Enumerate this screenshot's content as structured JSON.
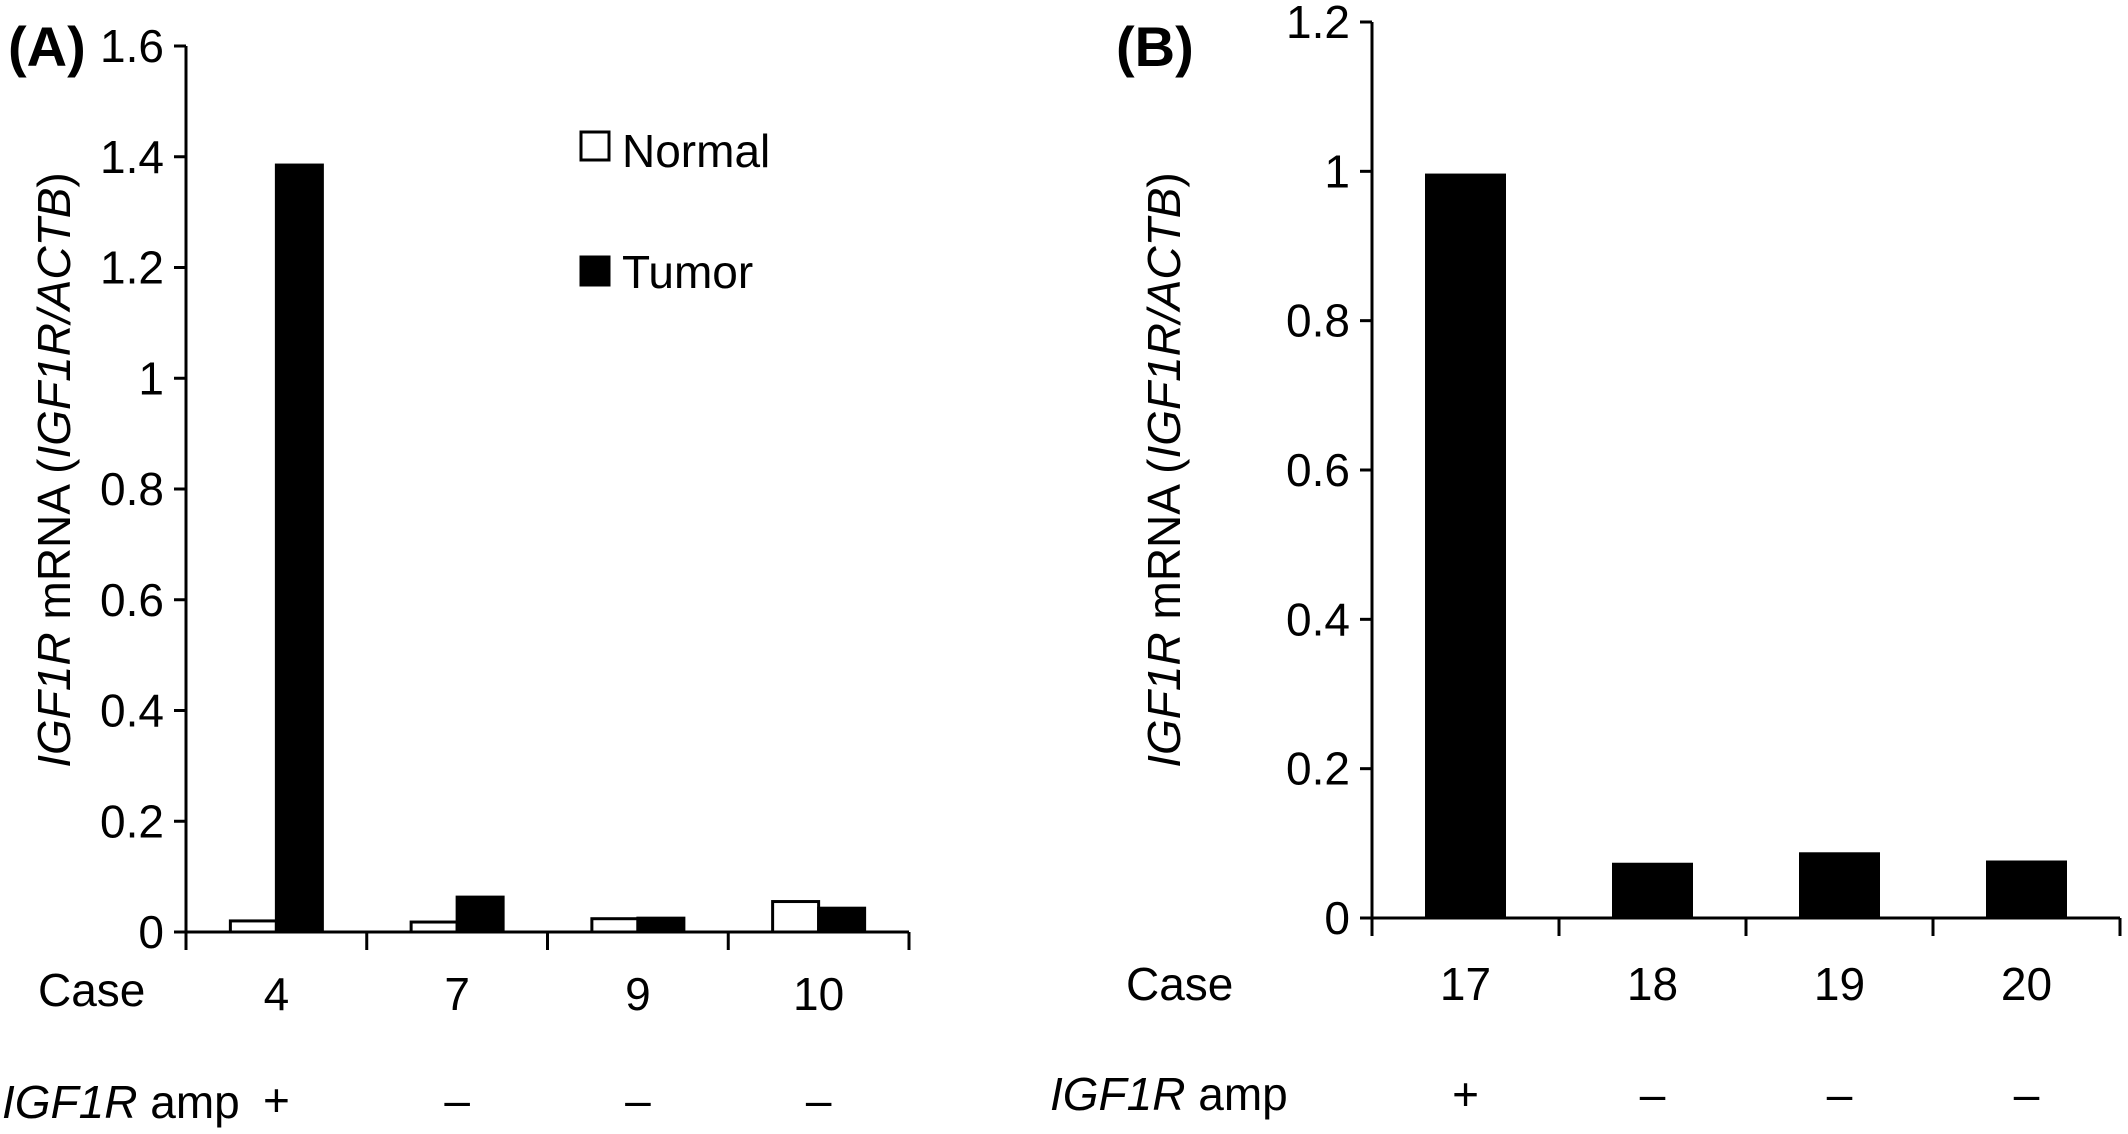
{
  "chart_data": [
    {
      "type": "bar",
      "panel_label": "(A)",
      "ylabel_italic": "IGF1R",
      "ylabel_mid": " mRNA (",
      "ylabel_italic2": "IGF1R/ACTB",
      "ylabel_end": ")",
      "ylim": [
        0,
        1.6
      ],
      "yticks": [
        "0",
        "0.2",
        "0.4",
        "0.6",
        "0.8",
        "1",
        "1.2",
        "1.4",
        "1.6"
      ],
      "x_row_label": "Case",
      "categories": [
        "4",
        "7",
        "9",
        "10"
      ],
      "amp_row_label_italic": "IGF1R",
      "amp_row_label_rest": " amp",
      "amp": [
        "+",
        "–",
        "–",
        "–"
      ],
      "series": [
        {
          "name": "Normal",
          "color": "#ffffff",
          "values": [
            0.02,
            0.018,
            0.024,
            0.055
          ]
        },
        {
          "name": "Tumor",
          "color": "#000000",
          "values": [
            1.385,
            0.063,
            0.025,
            0.043
          ]
        }
      ],
      "legend": {
        "position": "top-center"
      }
    },
    {
      "type": "bar",
      "panel_label": "(B)",
      "ylabel_italic": "IGF1R",
      "ylabel_mid": " mRNA (",
      "ylabel_italic2": "IGF1R/ACTB",
      "ylabel_end": ")",
      "ylim": [
        0,
        1.2
      ],
      "yticks": [
        "0",
        "0.2",
        "0.4",
        "0.6",
        "0.8",
        "1",
        "1.2"
      ],
      "x_row_label": "Case",
      "categories": [
        "17",
        "18",
        "19",
        "20"
      ],
      "amp_row_label_italic": "IGF1R",
      "amp_row_label_rest": " amp",
      "amp": [
        "+",
        "–",
        "–",
        "–"
      ],
      "series": [
        {
          "name": "Tumor",
          "color": "#000000",
          "values": [
            0.995,
            0.072,
            0.086,
            0.075
          ]
        }
      ]
    }
  ]
}
